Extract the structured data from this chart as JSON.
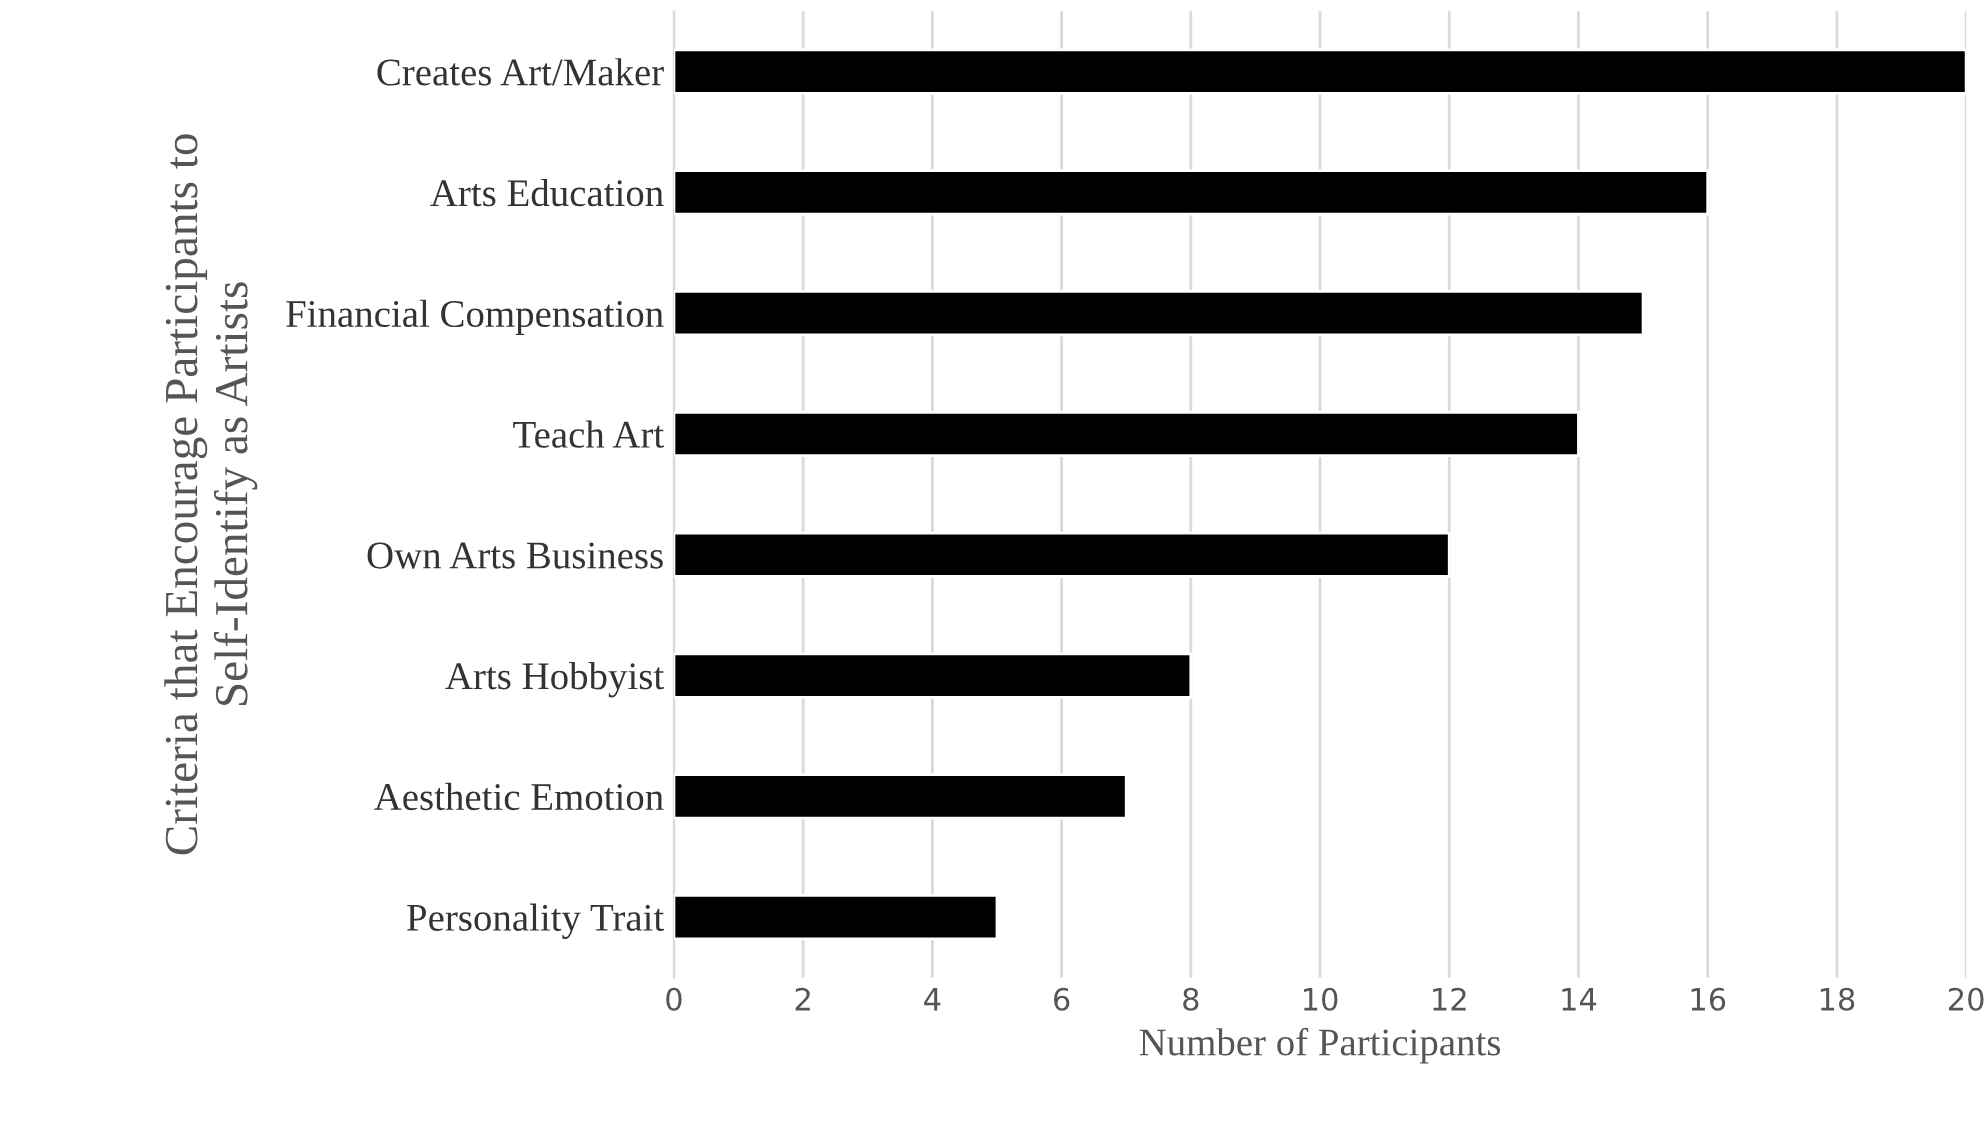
{
  "chart_data": {
    "type": "bar",
    "orientation": "horizontal",
    "xlabel": "Number of Participants",
    "ylabel": "Criteria that Encourage Participants to\nSelf-Identify as Artists",
    "categories": [
      "Creates Art/Maker",
      "Arts Education",
      "Financial Compensation",
      "Teach Art",
      "Own Arts Business",
      "Arts Hobbyist",
      "Aesthetic Emotion",
      "Personality Trait"
    ],
    "values": [
      20,
      16,
      15,
      14,
      12,
      8,
      7,
      5
    ],
    "color": "#000000",
    "xlim": [
      0,
      20
    ],
    "xticks": [
      0,
      2,
      4,
      6,
      8,
      10,
      12,
      14,
      16,
      18,
      20
    ],
    "grid": "x"
  }
}
